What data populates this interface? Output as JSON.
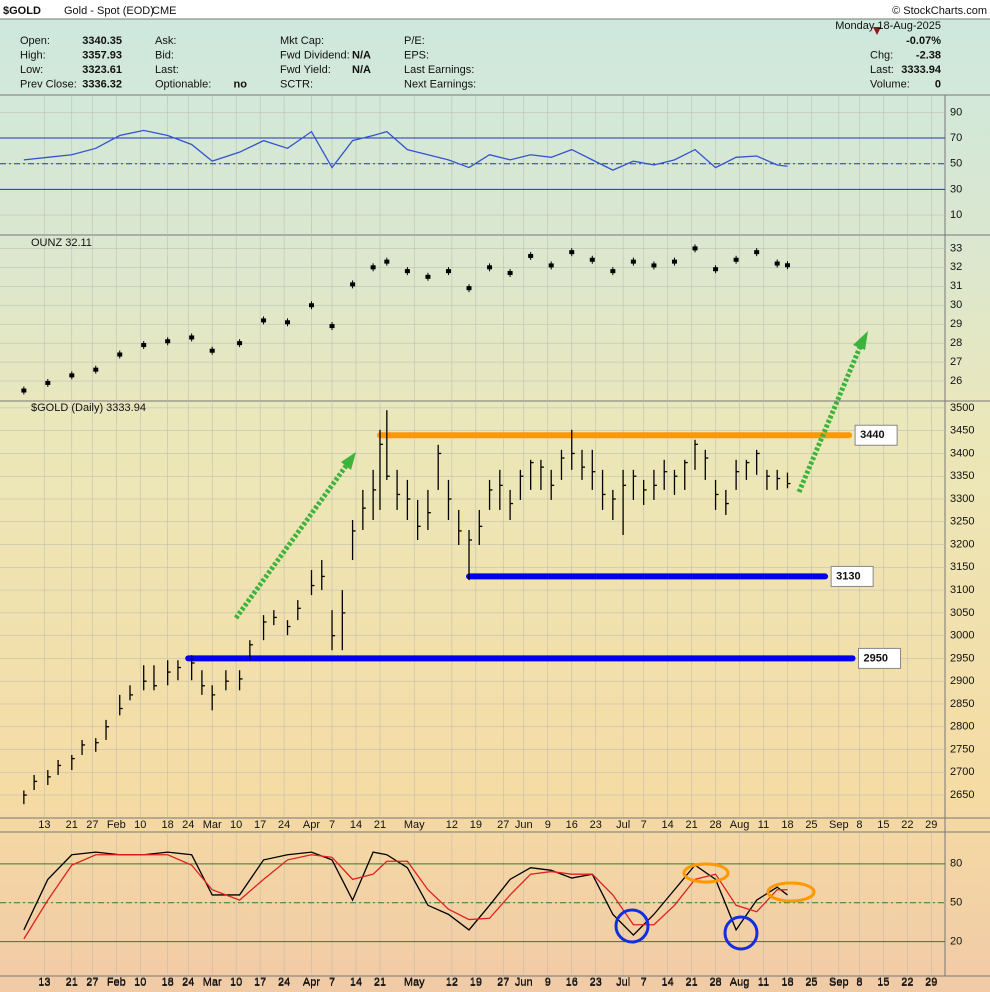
{
  "header": {
    "symbol": "$GOLD",
    "name": "Gold - Spot (EOD)",
    "exchange": "CME",
    "credit": "© StockCharts.com",
    "date": "Monday  18-Aug-2025",
    "change": "-0.07%",
    "quote": [
      [
        [
          "Open:",
          "3340.35"
        ],
        [
          "High:",
          "3357.93"
        ],
        [
          "Low:",
          "3323.61"
        ],
        [
          "Prev Close:",
          "3336.32"
        ]
      ],
      [
        [
          "Ask:"
        ],
        [
          "Bid:"
        ],
        [
          "Last:"
        ],
        [
          "Optionable:",
          "no"
        ]
      ],
      [
        [
          "Mkt Cap:"
        ],
        [
          "Fwd Dividend:",
          "N/A"
        ],
        [
          "Fwd Yield:",
          "N/A"
        ],
        [
          "SCTR:"
        ]
      ],
      [
        [
          "P/E:"
        ],
        [
          "EPS:"
        ],
        [
          "Last Earnings:"
        ],
        [
          "Next Earnings:"
        ]
      ]
    ],
    "summary": [
      [
        "Chg:",
        "-2.38"
      ],
      [
        "Last:",
        "3333.94"
      ],
      [
        "Volume:",
        "0"
      ]
    ]
  },
  "chart_data": [
    {
      "type": "line",
      "xlim": [
        5,
        276
      ],
      "ylim": [
        -4,
        102
      ],
      "yticks": [
        10,
        30,
        50,
        70,
        90
      ],
      "reference_lines": [
        30,
        50,
        70
      ],
      "reference_color": "#2233bb",
      "x": [
        7,
        14,
        21,
        28,
        35,
        42,
        49,
        56,
        62,
        70,
        77,
        84,
        91,
        97,
        103,
        109,
        113,
        119,
        125,
        131,
        137,
        143,
        149,
        155,
        161,
        167,
        173,
        179,
        185,
        191,
        197,
        203,
        209,
        215,
        221,
        227,
        230
      ],
      "series": [
        {
          "color": "#3355cc",
          "values": [
            53,
            55,
            57,
            62,
            72,
            76,
            72,
            65,
            52,
            59,
            68,
            62,
            75,
            47,
            68,
            72,
            75,
            61,
            57,
            53,
            47,
            57,
            53,
            57,
            55,
            61,
            53,
            45,
            52,
            49,
            53,
            61,
            47,
            55,
            56,
            49,
            48
          ]
        }
      ]
    },
    {
      "type": "scatter",
      "title": "OUNZ 32.11",
      "xlim": [
        5,
        276
      ],
      "ylim": [
        25,
        33.6
      ],
      "yticks": [
        26,
        27,
        28,
        29,
        30,
        31,
        32,
        33
      ],
      "color": "#000000",
      "x": [
        7,
        14,
        21,
        28,
        35,
        42,
        49,
        56,
        62,
        70,
        77,
        84,
        91,
        97,
        103,
        109,
        113,
        119,
        125,
        131,
        137,
        143,
        149,
        155,
        161,
        167,
        173,
        179,
        185,
        191,
        197,
        203,
        209,
        215,
        221,
        227,
        230
      ],
      "values": [
        25.5,
        25.9,
        26.3,
        26.6,
        27.4,
        27.9,
        28.1,
        28.3,
        27.6,
        28.0,
        29.2,
        29.1,
        30.0,
        28.9,
        31.1,
        32.0,
        32.3,
        31.8,
        31.5,
        31.8,
        30.9,
        32.0,
        31.7,
        32.6,
        32.1,
        32.8,
        32.4,
        31.8,
        32.3,
        32.1,
        32.3,
        33.0,
        31.9,
        32.4,
        32.8,
        32.2,
        32.11
      ]
    },
    {
      "type": "ohlc",
      "title": "$GOLD (Daily) 3333.94",
      "xlim": [
        5,
        276
      ],
      "ylim": [
        2604,
        3513
      ],
      "color": "#000000",
      "yticks": [
        2650,
        2700,
        2750,
        2800,
        2850,
        2900,
        2950,
        3000,
        3050,
        3100,
        3150,
        3200,
        3250,
        3300,
        3350,
        3400,
        3450,
        3500
      ],
      "xticks": [
        13,
        21,
        27,
        {
          "value": 34,
          "label": "Feb"
        },
        {
          "value": 41,
          "label": "10"
        },
        {
          "value": 49,
          "label": "18"
        },
        {
          "value": 55,
          "label": "24"
        },
        {
          "value": 62,
          "label": "Mar"
        },
        {
          "value": 69,
          "label": "10"
        },
        {
          "value": 76,
          "label": "17"
        },
        {
          "value": 83,
          "label": "24"
        },
        {
          "value": 91,
          "label": "Apr"
        },
        {
          "value": 97,
          "label": "7"
        },
        {
          "value": 104,
          "label": "14"
        },
        {
          "value": 111,
          "label": "21"
        },
        {
          "value": 121,
          "label": "May"
        },
        {
          "value": 132,
          "label": "12"
        },
        {
          "value": 139,
          "label": "19"
        },
        {
          "value": 147,
          "label": "27"
        },
        {
          "value": 153,
          "label": "Jun"
        },
        {
          "value": 160,
          "label": "9"
        },
        {
          "value": 167,
          "label": "16"
        },
        {
          "value": 174,
          "label": "23"
        },
        {
          "value": 182,
          "label": "Jul"
        },
        {
          "value": 188,
          "label": "7"
        },
        {
          "value": 195,
          "label": "14"
        },
        {
          "value": 202,
          "label": "21"
        },
        {
          "value": 209,
          "label": "28"
        },
        {
          "value": 216,
          "label": "Aug"
        },
        {
          "value": 223,
          "label": "11"
        },
        {
          "value": 230,
          "label": "18"
        },
        {
          "value": 237,
          "label": "25"
        },
        {
          "value": 245,
          "label": "Sep"
        },
        {
          "value": 251,
          "label": "8"
        },
        {
          "value": 258,
          "label": "15"
        },
        {
          "value": 265,
          "label": "22"
        },
        {
          "value": 272,
          "label": "29"
        }
      ],
      "x": [
        7,
        10,
        14,
        17,
        21,
        24,
        28,
        31,
        35,
        38,
        42,
        45,
        49,
        52,
        56,
        59,
        62,
        66,
        70,
        73,
        77,
        80,
        84,
        87,
        91,
        94,
        97,
        100,
        103,
        106,
        109,
        111,
        113,
        116,
        119,
        122,
        125,
        128,
        131,
        134,
        137,
        140,
        143,
        146,
        149,
        152,
        155,
        158,
        161,
        164,
        167,
        170,
        173,
        176,
        179,
        182,
        185,
        188,
        191,
        194,
        197,
        200,
        203,
        206,
        209,
        212,
        215,
        218,
        221,
        224,
        227,
        230
      ],
      "high": [
        2660,
        2694,
        2705,
        2727,
        2738,
        2771,
        2775,
        2815,
        2870,
        2891,
        2935,
        2935,
        2946,
        2946,
        2957,
        2924,
        2891,
        2924,
        2924,
        2990,
        3045,
        3056,
        3034,
        3078,
        3144,
        3166,
        3056,
        3100,
        3254,
        3320,
        3364,
        3452,
        3495,
        3364,
        3342,
        3298,
        3320,
        3419,
        3342,
        3276,
        3232,
        3276,
        3342,
        3364,
        3320,
        3364,
        3386,
        3386,
        3364,
        3408,
        3452,
        3408,
        3408,
        3364,
        3320,
        3364,
        3364,
        3342,
        3364,
        3386,
        3364,
        3386,
        3430,
        3408,
        3342,
        3320,
        3386,
        3386,
        3408,
        3364,
        3364,
        3357.93
      ],
      "low": [
        2630,
        2661,
        2672,
        2694,
        2705,
        2738,
        2745,
        2771,
        2825,
        2858,
        2880,
        2880,
        2891,
        2902,
        2902,
        2870,
        2836,
        2880,
        2880,
        2946,
        2990,
        3023,
        3001,
        3034,
        3089,
        3100,
        2968,
        2968,
        3166,
        3232,
        3254,
        3276,
        3342,
        3276,
        3254,
        3210,
        3232,
        3320,
        3254,
        3199,
        3122,
        3199,
        3276,
        3276,
        3254,
        3298,
        3320,
        3320,
        3298,
        3342,
        3364,
        3342,
        3320,
        3276,
        3254,
        3221,
        3298,
        3287,
        3298,
        3320,
        3309,
        3320,
        3364,
        3342,
        3276,
        3265,
        3320,
        3342,
        3353,
        3320,
        3320,
        3323.61
      ],
      "close": [
        2650,
        2680,
        2690,
        2715,
        2730,
        2760,
        2765,
        2800,
        2840,
        2870,
        2900,
        2890,
        2920,
        2930,
        2940,
        2890,
        2870,
        2900,
        2905,
        2980,
        3030,
        3040,
        3020,
        3060,
        3110,
        3130,
        3000,
        3050,
        3230,
        3280,
        3320,
        3420,
        3350,
        3310,
        3300,
        3240,
        3270,
        3400,
        3300,
        3230,
        3210,
        3240,
        3320,
        3330,
        3290,
        3350,
        3380,
        3370,
        3330,
        3390,
        3400,
        3370,
        3360,
        3310,
        3300,
        3330,
        3350,
        3320,
        3330,
        3360,
        3350,
        3380,
        3420,
        3390,
        3310,
        3290,
        3360,
        3380,
        3400,
        3350,
        3345,
        3333.94
      ],
      "levels": [
        {
          "value": 3440,
          "start": 111,
          "end": 248,
          "color": "#ff9900"
        },
        {
          "value": 3130,
          "start": 137,
          "end": 241,
          "color": "#0000ee"
        },
        {
          "value": 2950,
          "start": 55,
          "end": 249,
          "color": "#0000ee"
        }
      ]
    },
    {
      "type": "line",
      "xlim": [
        5,
        276
      ],
      "ylim": [
        -5,
        103
      ],
      "yticks": [
        20,
        50,
        80
      ],
      "reference_lines": [
        20,
        50,
        80
      ],
      "reference_color": "#2e7d32",
      "xticks": [
        13,
        21,
        27,
        {
          "value": 34,
          "label": "Feb"
        },
        {
          "value": 41,
          "label": "10"
        },
        {
          "value": 49,
          "label": "18"
        },
        {
          "value": 55,
          "label": "24"
        },
        {
          "value": 62,
          "label": "Mar"
        },
        {
          "value": 69,
          "label": "10"
        },
        {
          "value": 76,
          "label": "17"
        },
        {
          "value": 83,
          "label": "24"
        },
        {
          "value": 91,
          "label": "Apr"
        },
        {
          "value": 97,
          "label": "7"
        },
        {
          "value": 104,
          "label": "14"
        },
        {
          "value": 111,
          "label": "21"
        },
        {
          "value": 121,
          "label": "May"
        },
        {
          "value": 132,
          "label": "12"
        },
        {
          "value": 139,
          "label": "19"
        },
        {
          "value": 147,
          "label": "27"
        },
        {
          "value": 153,
          "label": "Jun"
        },
        {
          "value": 160,
          "label": "9"
        },
        {
          "value": 167,
          "label": "16"
        },
        {
          "value": 174,
          "label": "23"
        },
        {
          "value": 182,
          "label": "Jul"
        },
        {
          "value": 188,
          "label": "7"
        },
        {
          "value": 195,
          "label": "14"
        },
        {
          "value": 202,
          "label": "21"
        },
        {
          "value": 209,
          "label": "28"
        },
        {
          "value": 216,
          "label": "Aug"
        },
        {
          "value": 223,
          "label": "11"
        },
        {
          "value": 230,
          "label": "18"
        },
        {
          "value": 237,
          "label": "25"
        },
        {
          "value": 245,
          "label": "Sep"
        },
        {
          "value": 251,
          "label": "8"
        },
        {
          "value": 258,
          "label": "15"
        },
        {
          "value": 265,
          "label": "22"
        },
        {
          "value": 272,
          "label": "29"
        }
      ],
      "x": [
        7,
        14,
        21,
        28,
        35,
        42,
        49,
        56,
        62,
        70,
        77,
        84,
        91,
        97,
        103,
        109,
        113,
        119,
        125,
        131,
        137,
        143,
        149,
        155,
        161,
        167,
        173,
        179,
        185,
        191,
        197,
        203,
        209,
        215,
        221,
        227,
        230
      ],
      "series": [
        {
          "color": "#000000",
          "values": [
            29,
            68,
            87,
            89,
            87,
            87,
            89,
            87,
            56,
            56,
            83,
            87,
            89,
            83,
            52,
            89,
            87,
            77,
            48,
            41,
            29,
            48,
            68,
            77,
            75,
            69,
            72,
            41,
            25,
            41,
            60,
            79,
            68,
            29,
            52,
            62,
            56
          ]
        },
        {
          "color": "#e02020",
          "values": [
            22,
            52,
            79,
            87,
            87,
            87,
            87,
            79,
            60,
            52,
            68,
            83,
            87,
            85,
            68,
            72,
            82,
            82,
            60,
            45,
            37,
            38,
            56,
            72,
            74,
            72,
            72,
            56,
            33,
            33,
            48,
            68,
            72,
            48,
            43,
            60,
            60
          ]
        }
      ]
    }
  ]
}
